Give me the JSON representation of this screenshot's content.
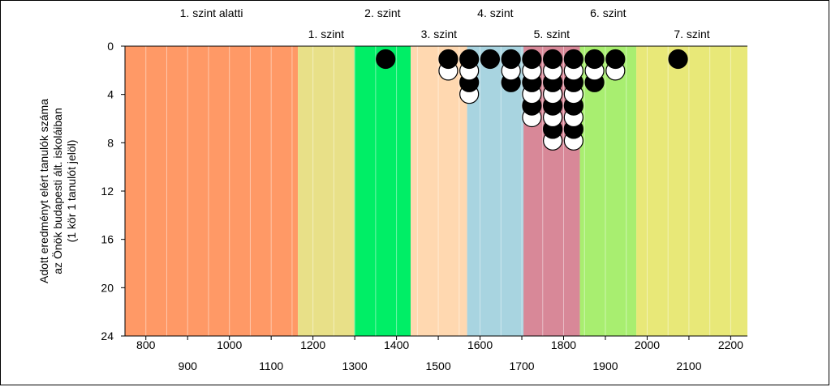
{
  "chart_data": {
    "type": "scatter",
    "title": "",
    "ylabel_lines": [
      "Adott eredményt elért tanulók száma",
      "az Önök budapesti ált. iskoláiban",
      "(1 kör 1 tanulót jelöl)"
    ],
    "xlim": [
      750,
      2240
    ],
    "ylim": [
      0,
      24
    ],
    "y_inverted": true,
    "x_ticks_row1": [
      "800",
      "1000",
      "1200",
      "1400",
      "1600",
      "1800",
      "2000",
      "2200"
    ],
    "x_ticks_row2": [
      "900",
      "1100",
      "1300",
      "1500",
      "1700",
      "1900",
      "2100"
    ],
    "y_ticks": [
      "0",
      "4",
      "8",
      "12",
      "16",
      "20",
      "24"
    ],
    "bands": [
      {
        "label": "1. szint alatti",
        "from": 750,
        "to": 1164,
        "color": "#ff9966",
        "row": 1
      },
      {
        "label": "1. szint",
        "from": 1164,
        "to": 1299,
        "color": "#e8e088",
        "row": 2
      },
      {
        "label": "2. szint",
        "from": 1299,
        "to": 1434,
        "color": "#00ee66",
        "row": 1
      },
      {
        "label": "3. szint",
        "from": 1434,
        "to": 1569,
        "color": "#ffd8b0",
        "row": 2
      },
      {
        "label": "4. szint",
        "from": 1569,
        "to": 1704,
        "color": "#a8d4e0",
        "row": 1
      },
      {
        "label": "5. szint",
        "from": 1704,
        "to": 1839,
        "color": "#d88898",
        "row": 2
      },
      {
        "label": "6. szint",
        "from": 1839,
        "to": 1974,
        "color": "#a8ee70",
        "row": 1
      },
      {
        "label": "7. szint",
        "from": 1974,
        "to": 2240,
        "color": "#e8e878",
        "row": 2
      }
    ],
    "series": [
      {
        "x": 1374,
        "count": 1
      },
      {
        "x": 1524,
        "count": 2
      },
      {
        "x": 1574,
        "count": 4
      },
      {
        "x": 1624,
        "count": 1
      },
      {
        "x": 1674,
        "count": 3
      },
      {
        "x": 1724,
        "count": 6
      },
      {
        "x": 1774,
        "count": 8
      },
      {
        "x": 1824,
        "count": 8
      },
      {
        "x": 1874,
        "count": 3
      },
      {
        "x": 1924,
        "count": 2
      },
      {
        "x": 2074,
        "count": 1
      }
    ],
    "grid_step": 50,
    "legend": "none"
  }
}
